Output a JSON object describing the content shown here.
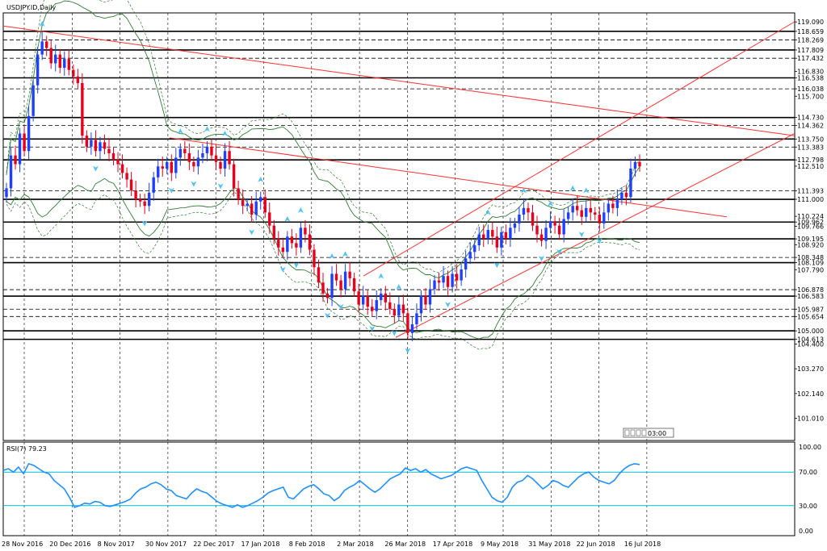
{
  "header": {
    "symbol_title": "USDJPY.ID,Daily"
  },
  "rsi_panel": {
    "label": "RSI(7) 79.23",
    "levels": [
      70,
      30
    ]
  },
  "countdown": {
    "label": "03:00"
  },
  "colors": {
    "bull": "#1f3fff",
    "bear": "#e8001c",
    "fractal": "#4fc3f7",
    "band": "#2e7d32",
    "trendline": "#ff3030",
    "rsi": "#1e90ff",
    "rsi_level": "#00bcd4"
  },
  "chart_data": [
    {
      "type": "candlestick",
      "title": "USDJPY.ID,Daily",
      "ylim": [
        100.0,
        119.5
      ],
      "price_axis_labels": [
        "119.090",
        "118.659",
        "118.269",
        "117.809",
        "117.432",
        "116.830",
        "116.538",
        "116.038",
        "115.700",
        "114.730",
        "114.362",
        "113.750",
        "113.383",
        "112.798",
        "112.510",
        "111.393",
        "111.000",
        "110.224",
        "109.962",
        "109.766",
        "109.195",
        "108.920",
        "108.348",
        "108.109",
        "107.790",
        "106.878",
        "106.583",
        "105.987",
        "105.654",
        "105.000",
        "104.613",
        "104.400",
        "103.270",
        "102.140",
        "101.010"
      ],
      "date_axis_labels": [
        "28 Nov 2016",
        "20 Dec 2016",
        "8 Nov 2017",
        "30 Nov 2017",
        "22 Dec 2017",
        "17 Jan 2018",
        "8 Feb 2018",
        "2 Mar 2018",
        "26 Mar 2018",
        "17 Apr 2018",
        "9 May 2018",
        "31 May 2018",
        "22 Jun 2018",
        "16 Jul 2018"
      ],
      "horizontal_levels": [
        118.659,
        117.809,
        116.538,
        114.73,
        113.75,
        112.798,
        111.0,
        109.962,
        109.195,
        108.109,
        106.583,
        105.0,
        104.613
      ],
      "dashed_levels": [
        118.269,
        117.432,
        116.038,
        114.362,
        113.383,
        111.393,
        108.348,
        106.878,
        105.987,
        105.654
      ],
      "close": [
        111.5,
        113.0,
        112.6,
        114.0,
        113.2,
        114.8,
        116.2,
        117.6,
        118.2,
        117.9,
        117.2,
        117.6,
        117.0,
        117.4,
        116.9,
        116.6,
        116.3,
        113.9,
        113.4,
        113.7,
        113.2,
        113.6,
        113.3,
        113.1,
        112.8,
        112.6,
        112.2,
        111.9,
        111.4,
        111.0,
        110.9,
        110.7,
        111.3,
        112.0,
        112.5,
        112.4,
        112.7,
        112.2,
        112.9,
        113.3,
        113.1,
        112.7,
        112.5,
        112.9,
        113.1,
        113.4,
        113.0,
        112.7,
        112.4,
        113.2,
        112.6,
        111.5,
        111.0,
        110.7,
        110.8,
        110.3,
        110.9,
        111.1,
        110.4,
        109.8,
        109.2,
        108.8,
        108.6,
        109.3,
        109.0,
        108.8,
        109.7,
        109.4,
        108.7,
        107.9,
        107.2,
        106.7,
        106.5,
        107.6,
        107.3,
        106.9,
        107.7,
        107.4,
        106.8,
        106.2,
        106.6,
        106.1,
        105.9,
        106.4,
        106.7,
        106.3,
        106.0,
        105.7,
        106.2,
        105.8,
        104.9,
        105.3,
        105.8,
        106.6,
        106.2,
        106.9,
        107.3,
        107.2,
        107.5,
        107.0,
        107.6,
        107.3,
        107.8,
        108.3,
        108.6,
        108.9,
        109.4,
        109.2,
        109.6,
        109.3,
        108.8,
        109.5,
        109.2,
        109.7,
        109.9,
        110.3,
        110.6,
        110.4,
        109.8,
        109.4,
        109.1,
        109.7,
        110.0,
        109.8,
        109.4,
        110.1,
        110.4,
        110.7,
        110.5,
        110.2,
        110.6,
        110.4,
        110.3,
        109.9,
        110.4,
        110.8,
        110.6,
        111.0,
        111.3,
        111.1,
        112.4,
        112.7,
        112.5
      ],
      "rsi_values": [
        72,
        74,
        70,
        76,
        68,
        80,
        78,
        74,
        70,
        68,
        60,
        55,
        50,
        40,
        28,
        30,
        33,
        32,
        35,
        34,
        30,
        29,
        31,
        33,
        35,
        38,
        45,
        50,
        52,
        56,
        58,
        55,
        50,
        48,
        42,
        40,
        38,
        45,
        50,
        47,
        45,
        40,
        35,
        32,
        30,
        28,
        31,
        28,
        30,
        33,
        36,
        40,
        45,
        48,
        50,
        52,
        40,
        38,
        44,
        50,
        53,
        55,
        50,
        44,
        42,
        36,
        40,
        48,
        52,
        55,
        60,
        55,
        50,
        46,
        50,
        56,
        62,
        65,
        68,
        75,
        72,
        74,
        70,
        73,
        68,
        65,
        62,
        64,
        66,
        70,
        74,
        76,
        74,
        72,
        60,
        50,
        40,
        36,
        34,
        40,
        52,
        58,
        60,
        66,
        62,
        56,
        50,
        54,
        60,
        58,
        54,
        52,
        58,
        64,
        68,
        70,
        64,
        60,
        58,
        56,
        60,
        68,
        74,
        78,
        80,
        79
      ]
    }
  ]
}
